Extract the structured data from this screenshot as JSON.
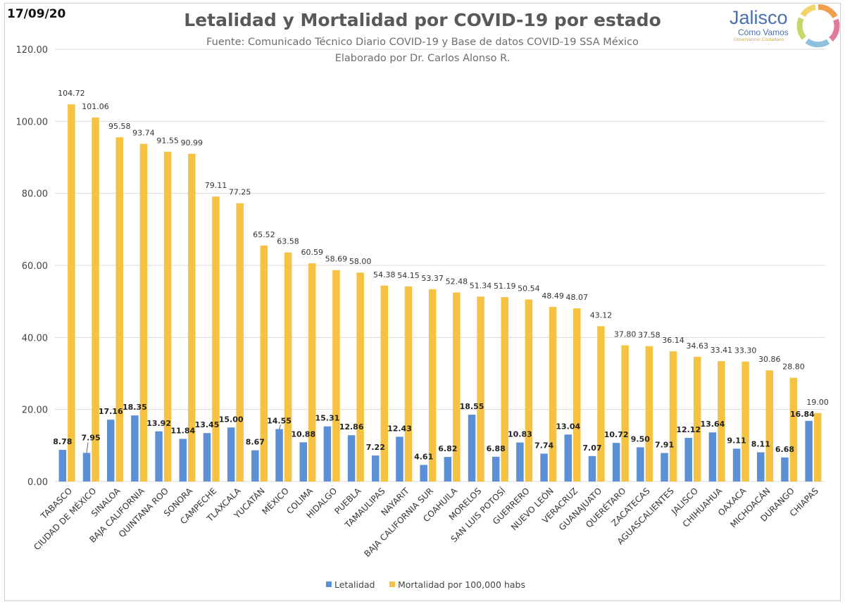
{
  "header": {
    "date": "17/09/20",
    "title": "Letalidad y Mortalidad por COVID-19 por estado",
    "subtitle1": "Fuente: Comunicado Técnico Diario COVID-19 y Base de datos COVID-19 SSA México",
    "subtitle2": "Elaborado por Dr. Carlos Alonso R."
  },
  "logo": {
    "name": "Jalisco",
    "tagline": "Cómo Vamos",
    "subline": "Observatorio Ciudadano"
  },
  "colors": {
    "letalidad": "#5b8fd6",
    "mortalidad": "#f5c242",
    "grid": "#d9d9d9"
  },
  "chart_data": {
    "type": "bar",
    "ylim": [
      0,
      120
    ],
    "yticks": [
      0,
      20,
      40,
      60,
      80,
      100,
      120
    ],
    "ytick_labels": [
      "0.00",
      "20.00",
      "40.00",
      "60.00",
      "80.00",
      "100.00",
      "120.00"
    ],
    "grid": true,
    "legend_placement": "bottom",
    "categories": [
      "TABASCO",
      "CIUDAD DE MÉXICO",
      "SINALOA",
      "BAJA CALIFORNIA",
      "QUINTANA ROO",
      "SONORA",
      "CAMPECHE",
      "TLAXCALA",
      "YUCATÁN",
      "MÉXICO",
      "COLIMA",
      "HIDALGO",
      "PUEBLA",
      "TAMAULIPAS",
      "NAYARIT",
      "BAJA CALIFORNIA SUR",
      "COAHUILA",
      "MORELOS",
      "SAN LUIS POTOSÍ",
      "GUERRERO",
      "NUEVO LEÓN",
      "VERACRUZ",
      "GUANAJUATO",
      "QUERÉTARO",
      "ZACATECAS",
      "AGUASCALIENTES",
      "JALISCO",
      "CHIHUAHUA",
      "OAXACA",
      "MICHOACÁN",
      "DURANGO",
      "CHIAPAS"
    ],
    "series": [
      {
        "name": "Letalidad",
        "values": [
          8.78,
          7.95,
          17.16,
          18.35,
          13.92,
          11.84,
          13.45,
          15.0,
          8.67,
          14.55,
          10.88,
          15.31,
          12.86,
          7.22,
          12.43,
          4.61,
          6.82,
          18.55,
          6.88,
          10.83,
          7.74,
          13.04,
          7.07,
          10.72,
          9.5,
          7.91,
          12.12,
          13.64,
          9.11,
          8.11,
          6.68,
          16.84
        ],
        "labels": [
          "8.78",
          "7.95",
          "17.16",
          "18.35",
          "13.92",
          "11.84",
          "13.45",
          "15.00",
          "8.67",
          "14.55",
          "10.88",
          "15.31",
          "12.86",
          "7.22",
          "12.43",
          "4.61",
          "6.82",
          "18.55",
          "6.88",
          "10.83",
          "7.74",
          "13.04",
          "7.07",
          "10.72",
          "9.50",
          "7.91",
          "12.12",
          "13.64",
          "9.11",
          "8.11",
          "6.68",
          "16.84"
        ]
      },
      {
        "name": "Mortalidad por 100,000 habs",
        "values": [
          104.72,
          101.06,
          95.58,
          93.74,
          91.55,
          90.99,
          79.11,
          77.25,
          65.52,
          63.58,
          60.59,
          58.69,
          58.0,
          54.38,
          54.15,
          53.37,
          52.48,
          51.34,
          51.19,
          50.54,
          48.49,
          48.07,
          43.12,
          37.8,
          37.58,
          36.14,
          34.63,
          33.41,
          33.3,
          30.86,
          28.8,
          19.0
        ],
        "labels": [
          "104.72",
          "101.06",
          "95.58",
          "93.74",
          "91.55",
          "90.99",
          "79.11",
          "77.25",
          "65.52",
          "63.58",
          "60.59",
          "58.69",
          "58.00",
          "54.38",
          "54.15",
          "53.37",
          "52.48",
          "51.34",
          "51.19",
          "50.54",
          "48.49",
          "48.07",
          "43.12",
          "37.80",
          "37.58",
          "36.14",
          "34.63",
          "33.41",
          "33.30",
          "30.86",
          "28.80",
          "19.00"
        ]
      }
    ]
  }
}
